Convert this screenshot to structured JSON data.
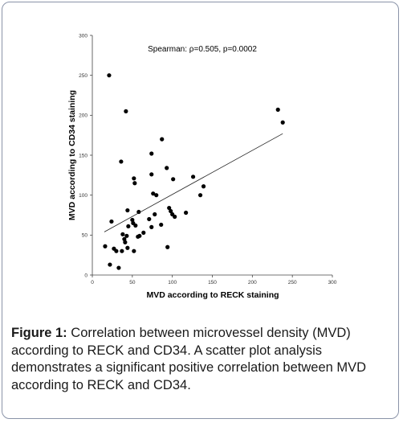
{
  "caption": {
    "label": "Figure 1:",
    "text": "Correlation between microvessel density (MVD) according to RECK and CD34. A scatter plot analysis demonstrates a significant positive correlation between MVD according to RECK and CD34."
  },
  "chart_data": {
    "type": "scatter",
    "title": "",
    "annotation": "Spearman: ρ=0.505, p=0.0002",
    "xlabel": "MVD according to RECK staining",
    "ylabel": "MVD according to CD34 staining",
    "xlim": [
      0,
      300
    ],
    "ylim": [
      0,
      300
    ],
    "xticks": [
      "0",
      "50",
      "100",
      "150",
      "200",
      "250",
      "300"
    ],
    "yticks": [
      "0",
      "50",
      "100",
      "150",
      "200",
      "250",
      "300"
    ],
    "grid": false,
    "legend": "none",
    "marker_color": "#000000",
    "points": [
      {
        "x": 21,
        "y": 250
      },
      {
        "x": 42,
        "y": 205
      },
      {
        "x": 36,
        "y": 142
      },
      {
        "x": 74,
        "y": 152
      },
      {
        "x": 87,
        "y": 170
      },
      {
        "x": 93,
        "y": 134
      },
      {
        "x": 52,
        "y": 121
      },
      {
        "x": 53,
        "y": 115
      },
      {
        "x": 74,
        "y": 126
      },
      {
        "x": 101,
        "y": 120
      },
      {
        "x": 126,
        "y": 123
      },
      {
        "x": 76,
        "y": 102
      },
      {
        "x": 80,
        "y": 100
      },
      {
        "x": 135,
        "y": 100
      },
      {
        "x": 139,
        "y": 111
      },
      {
        "x": 232,
        "y": 207
      },
      {
        "x": 238,
        "y": 191
      },
      {
        "x": 24,
        "y": 67
      },
      {
        "x": 44,
        "y": 81
      },
      {
        "x": 58,
        "y": 79
      },
      {
        "x": 50,
        "y": 69
      },
      {
        "x": 51,
        "y": 65
      },
      {
        "x": 71,
        "y": 70
      },
      {
        "x": 78,
        "y": 76
      },
      {
        "x": 96,
        "y": 84
      },
      {
        "x": 98,
        "y": 80
      },
      {
        "x": 117,
        "y": 78
      },
      {
        "x": 100,
        "y": 76
      },
      {
        "x": 103,
        "y": 73
      },
      {
        "x": 45,
        "y": 61
      },
      {
        "x": 54,
        "y": 62
      },
      {
        "x": 86,
        "y": 63
      },
      {
        "x": 74,
        "y": 60
      },
      {
        "x": 64,
        "y": 53
      },
      {
        "x": 38,
        "y": 51
      },
      {
        "x": 43,
        "y": 49
      },
      {
        "x": 57,
        "y": 48
      },
      {
        "x": 59,
        "y": 49
      },
      {
        "x": 40,
        "y": 45
      },
      {
        "x": 41,
        "y": 41
      },
      {
        "x": 16,
        "y": 36
      },
      {
        "x": 27,
        "y": 33
      },
      {
        "x": 44,
        "y": 34
      },
      {
        "x": 30,
        "y": 30
      },
      {
        "x": 37,
        "y": 30
      },
      {
        "x": 52,
        "y": 30
      },
      {
        "x": 94,
        "y": 35
      },
      {
        "x": 22,
        "y": 13
      },
      {
        "x": 33,
        "y": 9
      }
    ],
    "trendline": {
      "x": [
        15,
        238
      ],
      "y": [
        54,
        177
      ]
    }
  }
}
